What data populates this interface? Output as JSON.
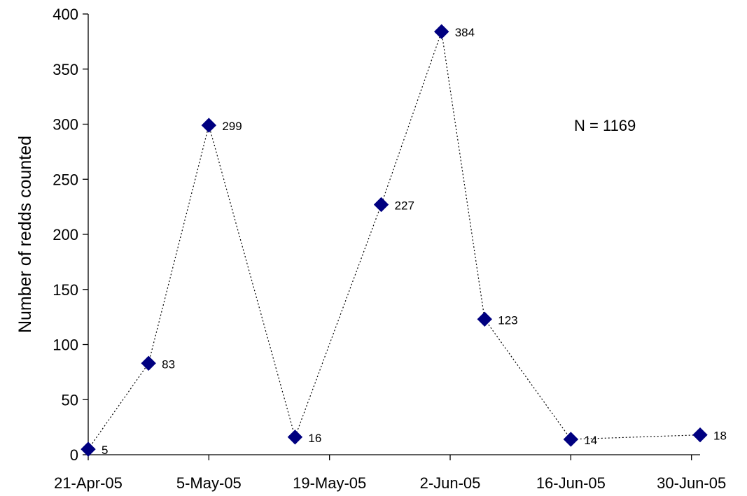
{
  "chart_data": {
    "type": "line",
    "title": "",
    "xlabel": "",
    "ylabel": "Number of redds counted",
    "ylim": [
      0,
      400
    ],
    "xlim": [
      "2005-04-21",
      "2005-07-01"
    ],
    "y_ticks": [
      "0",
      "50",
      "100",
      "150",
      "200",
      "250",
      "300",
      "350",
      "400"
    ],
    "x_ticks": [
      {
        "date": "2005-04-21",
        "label": "21-Apr-05"
      },
      {
        "date": "2005-05-05",
        "label": "5-May-05"
      },
      {
        "date": "2005-05-19",
        "label": "19-May-05"
      },
      {
        "date": "2005-06-02",
        "label": "2-Jun-05"
      },
      {
        "date": "2005-06-16",
        "label": "16-Jun-05"
      },
      {
        "date": "2005-06-30",
        "label": "30-Jun-05"
      }
    ],
    "grid": false,
    "legend": "none",
    "marker": "diamond",
    "line_style": "dotted",
    "series_color": "#000080",
    "annotation": "N = 1169",
    "points": [
      {
        "x": "2005-04-21",
        "y": 5,
        "label": "5"
      },
      {
        "x": "2005-04-28",
        "y": 83,
        "label": "83"
      },
      {
        "x": "2005-05-05",
        "y": 299,
        "label": "299"
      },
      {
        "x": "2005-05-15",
        "y": 16,
        "label": "16"
      },
      {
        "x": "2005-05-25",
        "y": 227,
        "label": "227"
      },
      {
        "x": "2005-06-01",
        "y": 384,
        "label": "384"
      },
      {
        "x": "2005-06-06",
        "y": 123,
        "label": "123"
      },
      {
        "x": "2005-06-16",
        "y": 14,
        "label": "14"
      },
      {
        "x": "2005-07-01",
        "y": 18,
        "label": "18"
      }
    ]
  }
}
